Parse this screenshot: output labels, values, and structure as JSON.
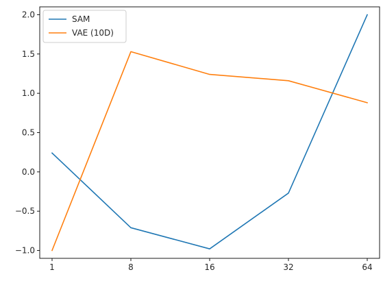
{
  "chart_data": {
    "type": "line",
    "title": "",
    "xlabel": "",
    "ylabel": "",
    "categories": [
      "1",
      "8",
      "16",
      "32",
      "64"
    ],
    "series": [
      {
        "name": "SAM",
        "color": "#1f77b4",
        "values": [
          0.24,
          -0.71,
          -0.98,
          -0.27,
          2.0
        ]
      },
      {
        "name": "VAE (10D)",
        "color": "#ff7f0e",
        "values": [
          -1.0,
          1.53,
          1.24,
          1.16,
          0.88
        ]
      }
    ],
    "ylim": [
      -1.1,
      2.1
    ],
    "yticks": [
      {
        "value": -1.0,
        "label": "−1.0"
      },
      {
        "value": -0.5,
        "label": "−0.5"
      },
      {
        "value": 0.0,
        "label": "0.0"
      },
      {
        "value": 0.5,
        "label": "0.5"
      },
      {
        "value": 1.0,
        "label": "1.0"
      },
      {
        "value": 1.5,
        "label": "1.5"
      },
      {
        "value": 2.0,
        "label": "2.0"
      }
    ],
    "grid": false,
    "legend_position": "upper-left"
  }
}
